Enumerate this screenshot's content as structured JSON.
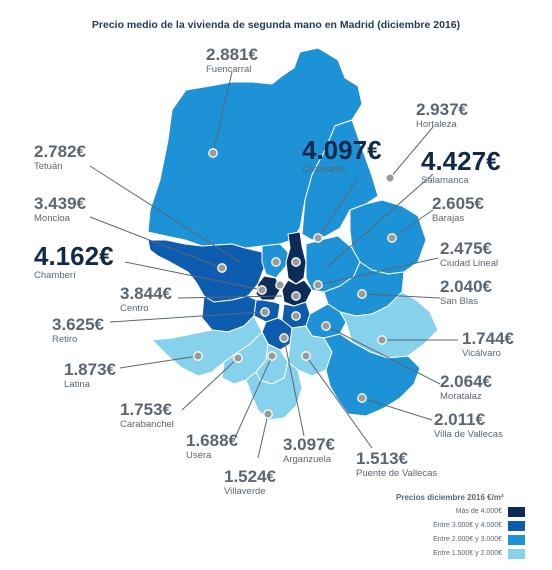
{
  "title": "Precio medio de la vivienda de segunda mano en Madrid (diciembre 2016)",
  "colors": {
    "mas_4000": "#0d2b57",
    "entre_3000_4000": "#0d5cb0",
    "entre_2000_3000": "#1e92d6",
    "entre_1500_2000": "#86d1ec",
    "outline": "#ffffff",
    "leader": "#5a6773",
    "marker": "#888888"
  },
  "districts": [
    {
      "price": "2.881€",
      "name": "Fuencarral"
    },
    {
      "price": "2.937€",
      "name": "Hortaleza"
    },
    {
      "price": "2.782€",
      "name": "Tetuán"
    },
    {
      "price": "4.097€",
      "name": "Chamartín"
    },
    {
      "price": "4.427€",
      "name": "Salamanca"
    },
    {
      "price": "3.439€",
      "name": "Moncloa"
    },
    {
      "price": "2.605€",
      "name": "Barajas"
    },
    {
      "price": "4.162€",
      "name": "Chamberí"
    },
    {
      "price": "2.475€",
      "name": "Ciudad Lineal"
    },
    {
      "price": "3.844€",
      "name": "Centro"
    },
    {
      "price": "2.040€",
      "name": "San Blas"
    },
    {
      "price": "3.625€",
      "name": "Retiro"
    },
    {
      "price": "1.744€",
      "name": "Vicálvaro"
    },
    {
      "price": "1.873€",
      "name": "Latina"
    },
    {
      "price": "2.064€",
      "name": "Moratalaz"
    },
    {
      "price": "1.753€",
      "name": "Carabanchel"
    },
    {
      "price": "2.011€",
      "name": "Villa de Vallecas"
    },
    {
      "price": "1.688€",
      "name": "Usera"
    },
    {
      "price": "3.097€",
      "name": "Arganzuela"
    },
    {
      "price": "1.513€",
      "name": "Puente de Vallecas"
    },
    {
      "price": "1.524€",
      "name": "Villaverde"
    }
  ],
  "legend": {
    "title": "Precios  diciembre 2016 €/m²",
    "items": [
      {
        "label": "Más de 4.000€",
        "color": "#0d2b57"
      },
      {
        "label": "Entre 3.000€ y 4.000€",
        "color": "#0d5cb0"
      },
      {
        "label": "Entre 2.000€ y 3.000€",
        "color": "#1e92d6"
      },
      {
        "label": "Entre 1.500€ y 2.000€",
        "color": "#86d1ec"
      }
    ]
  }
}
